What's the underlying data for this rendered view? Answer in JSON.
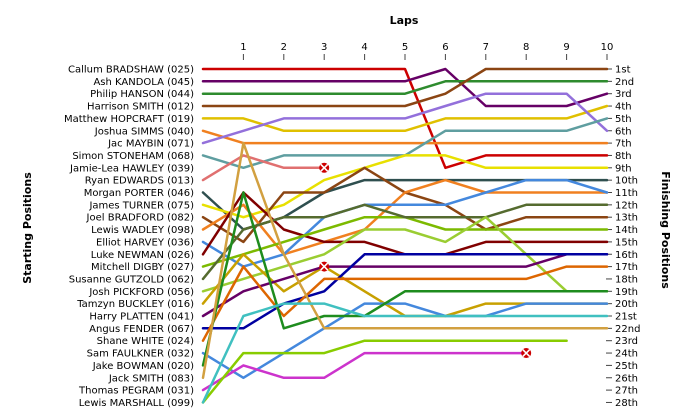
{
  "chart_data": {
    "type": "line",
    "title": "Laps",
    "ylabel_left": "Starting Positions",
    "ylabel_right": "Finishing Positions",
    "laps": [
      1,
      2,
      3,
      4,
      5,
      6,
      7,
      8,
      9,
      10
    ],
    "grid": false,
    "starting_order": [
      "Callum BRADSHAW (025)",
      "Ash KANDOLA (045)",
      "Philip HANSON (044)",
      "Harrison SMITH (012)",
      "Matthew HOPCRAFT (019)",
      "Joshua SIMMS (040)",
      "Jac MAYBIN (071)",
      "Simon STONEHAM (068)",
      "Jamie-Lea HAWLEY (039)",
      "Ryan EDWARDS (013)",
      "Morgan PORTER (046)",
      "James TURNER (075)",
      "Joel BRADFORD (082)",
      "Lewis WADLEY (098)",
      "Elliot HARVEY (036)",
      "Luke NEWMAN (026)",
      "Mitchell DIGBY (027)",
      "Susanne GUTZOLD (062)",
      "Josh PICKFORD (056)",
      "Tamzyn BUCKLEY (016)",
      "Harry PLATTEN (041)",
      "Angus FENDER (067)",
      "Shane WHITE (024)",
      "Sam FAULKNER (032)",
      "Jake BOWMAN (020)",
      "Jack SMITH (083)",
      "Thomas PEGRAM (031)",
      "Lewis MARSHALL (099)"
    ],
    "finishing_labels": [
      "1st",
      "2nd",
      "3rd",
      "4th",
      "5th",
      "6th",
      "7th",
      "8th",
      "9th",
      "10th",
      "11th",
      "12th",
      "13th",
      "14th",
      "15th",
      "16th",
      "17th",
      "18th",
      "19th",
      "20th",
      "21st",
      "22nd",
      "23rd",
      "24th",
      "25th",
      "26th",
      "27th",
      "28th"
    ],
    "series": [
      {
        "color": "#cc0000",
        "start": 1,
        "positions": [
          1,
          1,
          1,
          1,
          1,
          9,
          8,
          8,
          8,
          8
        ]
      },
      {
        "color": "#660066",
        "start": 2,
        "positions": [
          2,
          2,
          2,
          2,
          2,
          1,
          4,
          4,
          4,
          3
        ]
      },
      {
        "color": "#2e8b2e",
        "start": 3,
        "positions": [
          3,
          3,
          3,
          3,
          3,
          2,
          2,
          2,
          2,
          2
        ]
      },
      {
        "color": "#8b4513",
        "start": 4,
        "positions": [
          4,
          4,
          4,
          4,
          4,
          3,
          1,
          1,
          1,
          1
        ]
      },
      {
        "color": "#e0c000",
        "start": 5,
        "positions": [
          5,
          6,
          6,
          6,
          6,
          5,
          5,
          5,
          5,
          4
        ]
      },
      {
        "color": "#f08020",
        "start": 6,
        "positions": [
          7,
          7,
          7,
          7,
          7,
          7,
          7,
          7,
          7,
          7
        ]
      },
      {
        "color": "#9370db",
        "start": 7,
        "positions": [
          6,
          5,
          5,
          5,
          5,
          4,
          3,
          3,
          3,
          6
        ]
      },
      {
        "color": "#5f9ea0",
        "start": 8,
        "positions": [
          9,
          8,
          8,
          8,
          8,
          6,
          6,
          6,
          6,
          5
        ]
      },
      {
        "color": "#e07070",
        "start": 10,
        "positions": [
          8,
          9,
          9
        ]
      },
      {
        "color": "#2f4f4f",
        "start": 11,
        "positions": [
          14,
          13,
          11,
          10,
          10,
          10,
          10,
          10,
          10,
          10
        ]
      },
      {
        "color": "#e8e000",
        "start": 12,
        "positions": [
          13,
          12,
          10,
          9,
          8,
          8,
          9,
          9,
          9,
          9
        ]
      },
      {
        "color": "#8b4513",
        "start": 13,
        "positions": [
          15,
          11,
          11,
          9,
          11,
          12,
          14,
          13,
          13,
          13
        ]
      },
      {
        "color": "#f08020",
        "start": 14,
        "positions": [
          12,
          16,
          15,
          14,
          11,
          10,
          11,
          11,
          11,
          11
        ]
      },
      {
        "color": "#4488dd",
        "start": 15,
        "positions": [
          17,
          16,
          13,
          12,
          12,
          12,
          11,
          10,
          10,
          11
        ]
      },
      {
        "color": "#800000",
        "start": 16,
        "positions": [
          11,
          14,
          15,
          15,
          16,
          16,
          15,
          15,
          15,
          15
        ]
      },
      {
        "color": "#7cba00",
        "start": 17,
        "positions": [
          16,
          15,
          14,
          13,
          13,
          14,
          14,
          14,
          14,
          14
        ]
      },
      {
        "color": "#556b2f",
        "start": 18,
        "positions": [
          14,
          13,
          13,
          12,
          13,
          13,
          13,
          12,
          12,
          12
        ]
      },
      {
        "color": "#9acd32",
        "start": 19,
        "positions": [
          18,
          17,
          16,
          14,
          14,
          15,
          13,
          16,
          19,
          19
        ]
      },
      {
        "color": "#c8a000",
        "start": 20,
        "positions": [
          16,
          19,
          17,
          19,
          21,
          21,
          20,
          20,
          20,
          20
        ]
      },
      {
        "color": "#660066",
        "start": 21,
        "positions": [
          19,
          18,
          17,
          17,
          17,
          17,
          17,
          17,
          16,
          16
        ]
      },
      {
        "color": "#0000a0",
        "start": 22,
        "positions": [
          22,
          20,
          19,
          16,
          16,
          16,
          16,
          16,
          16,
          16
        ]
      },
      {
        "color": "#dd6600",
        "start": 23,
        "positions": [
          17,
          21,
          18,
          18,
          18,
          18,
          18,
          18,
          17,
          17
        ]
      },
      {
        "color": "#4488dd",
        "start": 24,
        "positions": [
          26,
          24,
          22,
          20,
          20,
          21,
          21,
          20,
          20,
          20
        ]
      },
      {
        "color": "#1e8c1e",
        "start": 25,
        "positions": [
          11,
          22,
          21,
          21,
          19,
          19,
          19,
          19,
          19,
          19
        ]
      },
      {
        "color": "#d2a040",
        "start": 26,
        "positions": [
          7,
          16,
          22,
          22,
          22,
          22,
          22,
          22,
          22,
          22
        ]
      },
      {
        "color": "#cc33cc",
        "start": 27,
        "positions": [
          25,
          26,
          26,
          24,
          24,
          24,
          24,
          24
        ]
      },
      {
        "color": "#88cc00",
        "start": 28,
        "positions": [
          24,
          24,
          24,
          23,
          23,
          23,
          23,
          23,
          23
        ]
      },
      {
        "color": "#40c0c0",
        "start": 28,
        "positions": [
          21,
          20,
          20,
          21,
          21,
          21,
          21,
          21,
          21,
          21
        ]
      }
    ],
    "retirements": [
      {
        "lap": 3,
        "position": 9
      },
      {
        "lap": 3,
        "position": 17
      },
      {
        "lap": 8,
        "position": 24
      }
    ]
  }
}
